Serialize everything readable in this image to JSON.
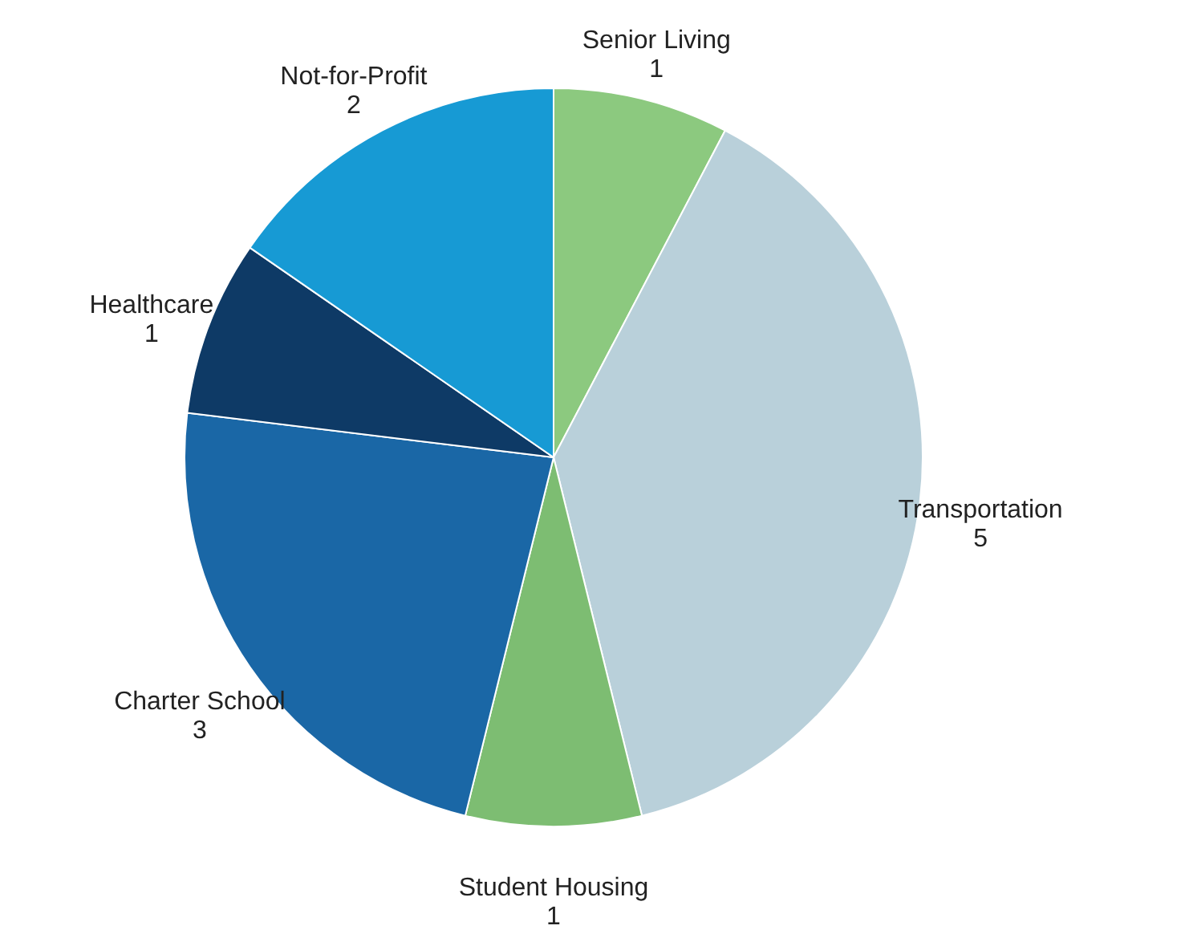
{
  "chart_data": {
    "type": "pie",
    "categories": [
      "Senior Living",
      "Transportation",
      "Student Housing",
      "Charter School",
      "Healthcare",
      "Not-for-Profit"
    ],
    "values": [
      1,
      5,
      1,
      3,
      1,
      2
    ],
    "colors": [
      "#8cc97f",
      "#b9d0da",
      "#7dbd72",
      "#1a67a6",
      "#0e3a66",
      "#179ad4"
    ],
    "data_labels": true,
    "legend": false
  }
}
